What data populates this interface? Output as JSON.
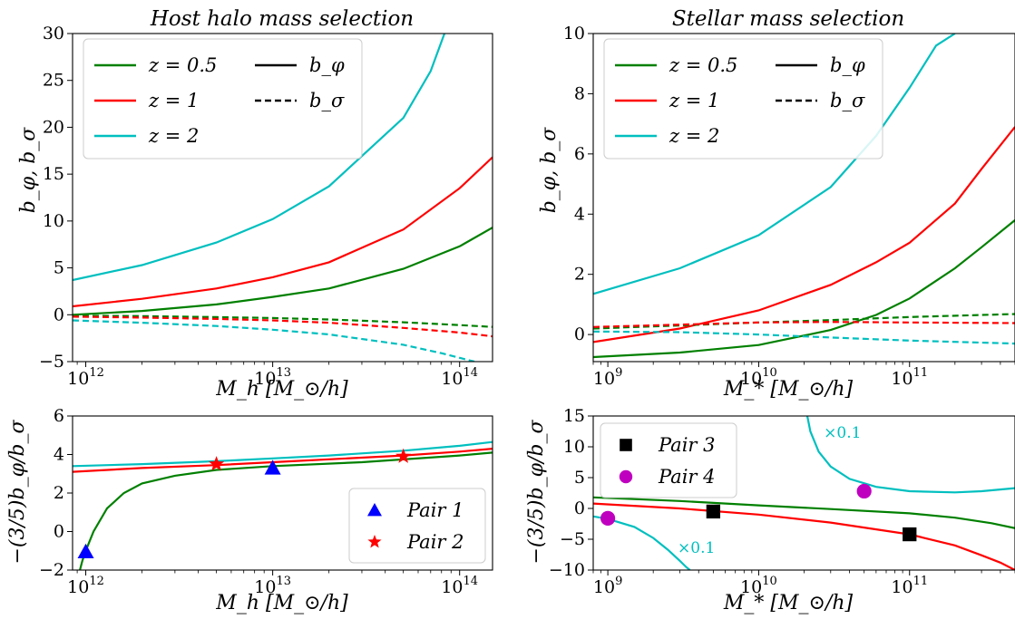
{
  "colors": {
    "z05": "#008000",
    "z1": "#ff0000",
    "z2": "#00bfbf",
    "pair1": "#0000ff",
    "pair2": "#ff0000",
    "pair3": "#000000",
    "pair4": "#bf00bf"
  },
  "chart_data": [
    {
      "id": "top-left",
      "type": "line",
      "title": "Host halo mass selection",
      "xlabel": "M_h [M_⊙/h]",
      "ylabel": "b_φ, b_σ",
      "xscale": "log",
      "xlim": [
        850000000000.0,
        150000000000000.0
      ],
      "ylim": [
        -5,
        30
      ],
      "xticks": [
        {
          "v": 1000000000000.0,
          "label": "10^12"
        },
        {
          "v": 10000000000000.0,
          "label": "10^13"
        },
        {
          "v": 100000000000000.0,
          "label": "10^14"
        }
      ],
      "yticks": [
        {
          "v": -5,
          "label": "−5"
        },
        {
          "v": 0,
          "label": "0"
        },
        {
          "v": 5,
          "label": "5"
        },
        {
          "v": 10,
          "label": "10"
        },
        {
          "v": 15,
          "label": "15"
        },
        {
          "v": 20,
          "label": "20"
        },
        {
          "v": 25,
          "label": "25"
        },
        {
          "v": 30,
          "label": "30"
        }
      ],
      "legend": {
        "placement": "top-left",
        "entries": [
          {
            "label": "z = 0.5",
            "color": "#008000",
            "dash": "solid"
          },
          {
            "label": "z = 1",
            "color": "#ff0000",
            "dash": "solid"
          },
          {
            "label": "z = 2",
            "color": "#00bfbf",
            "dash": "solid"
          },
          {
            "label": "b_φ",
            "color": "#000000",
            "dash": "solid"
          },
          {
            "label": "b_σ",
            "color": "#000000",
            "dash": "dashed"
          }
        ]
      },
      "series": [
        {
          "color": "#008000",
          "dash": "solid",
          "x": [
            850000000000.0,
            2000000000000.0,
            5000000000000.0,
            10000000000000.0,
            20000000000000.0,
            50000000000000.0,
            100000000000000.0,
            150000000000000.0
          ],
          "y": [
            0.0,
            0.4,
            1.1,
            1.9,
            2.8,
            4.9,
            7.3,
            9.3
          ]
        },
        {
          "color": "#ff0000",
          "dash": "solid",
          "x": [
            850000000000.0,
            2000000000000.0,
            5000000000000.0,
            10000000000000.0,
            20000000000000.0,
            50000000000000.0,
            100000000000000.0,
            150000000000000.0
          ],
          "y": [
            0.9,
            1.7,
            2.8,
            4.0,
            5.6,
            9.1,
            13.5,
            16.8
          ]
        },
        {
          "color": "#00bfbf",
          "dash": "solid",
          "x": [
            850000000000.0,
            2000000000000.0,
            5000000000000.0,
            10000000000000.0,
            20000000000000.0,
            50000000000000.0,
            70000000000000.0,
            83000000000000.0
          ],
          "y": [
            3.7,
            5.3,
            7.7,
            10.2,
            13.7,
            21.0,
            26.0,
            30.0
          ]
        },
        {
          "color": "#008000",
          "dash": "dashed",
          "x": [
            850000000000.0,
            2000000000000.0,
            5000000000000.0,
            10000000000000.0,
            20000000000000.0,
            50000000000000.0,
            100000000000000.0,
            150000000000000.0
          ],
          "y": [
            -0.1,
            -0.15,
            -0.25,
            -0.35,
            -0.5,
            -0.8,
            -1.1,
            -1.3
          ]
        },
        {
          "color": "#ff0000",
          "dash": "dashed",
          "x": [
            850000000000.0,
            2000000000000.0,
            5000000000000.0,
            10000000000000.0,
            20000000000000.0,
            50000000000000.0,
            100000000000000.0,
            150000000000000.0
          ],
          "y": [
            -0.2,
            -0.3,
            -0.45,
            -0.6,
            -0.85,
            -1.4,
            -1.9,
            -2.3
          ]
        },
        {
          "color": "#00bfbf",
          "dash": "dashed",
          "x": [
            850000000000.0,
            2000000000000.0,
            5000000000000.0,
            10000000000000.0,
            20000000000000.0,
            50000000000000.0,
            80000000000000.0,
            120000000000000.0
          ],
          "y": [
            -0.6,
            -0.85,
            -1.2,
            -1.6,
            -2.1,
            -3.2,
            -4.1,
            -5.0
          ]
        }
      ]
    },
    {
      "id": "top-right",
      "type": "line",
      "title": "Stellar mass selection",
      "xlabel": "M_* [M_⊙/h]",
      "ylabel": "b_φ, b_σ",
      "xscale": "log",
      "xlim": [
        800000000.0,
        500000000000.0
      ],
      "ylim": [
        -0.9,
        10
      ],
      "xticks": [
        {
          "v": 1000000000.0,
          "label": "10^9"
        },
        {
          "v": 10000000000.0,
          "label": "10^10"
        },
        {
          "v": 100000000000.0,
          "label": "10^11"
        }
      ],
      "yticks": [
        {
          "v": 0,
          "label": "0"
        },
        {
          "v": 2,
          "label": "2"
        },
        {
          "v": 4,
          "label": "4"
        },
        {
          "v": 6,
          "label": "6"
        },
        {
          "v": 8,
          "label": "8"
        },
        {
          "v": 10,
          "label": "10"
        }
      ],
      "legend": {
        "placement": "top-left",
        "entries": [
          {
            "label": "z = 0.5",
            "color": "#008000",
            "dash": "solid"
          },
          {
            "label": "z = 1",
            "color": "#ff0000",
            "dash": "solid"
          },
          {
            "label": "z = 2",
            "color": "#00bfbf",
            "dash": "solid"
          },
          {
            "label": "b_φ",
            "color": "#000000",
            "dash": "solid"
          },
          {
            "label": "b_σ",
            "color": "#000000",
            "dash": "dashed"
          }
        ]
      },
      "series": [
        {
          "color": "#008000",
          "dash": "solid",
          "x": [
            800000000.0,
            3000000000.0,
            10000000000.0,
            30000000000.0,
            60000000000.0,
            100000000000.0,
            200000000000.0,
            300000000000.0,
            500000000000.0
          ],
          "y": [
            -0.75,
            -0.6,
            -0.35,
            0.15,
            0.65,
            1.2,
            2.2,
            2.9,
            3.8
          ]
        },
        {
          "color": "#ff0000",
          "dash": "solid",
          "x": [
            800000000.0,
            3000000000.0,
            10000000000.0,
            30000000000.0,
            60000000000.0,
            100000000000.0,
            200000000000.0,
            300000000000.0,
            500000000000.0
          ],
          "y": [
            -0.25,
            0.2,
            0.8,
            1.65,
            2.4,
            3.05,
            4.35,
            5.5,
            6.9
          ]
        },
        {
          "color": "#00bfbf",
          "dash": "solid",
          "x": [
            800000000.0,
            3000000000.0,
            10000000000.0,
            30000000000.0,
            60000000000.0,
            100000000000.0,
            150000000000.0,
            200000000000.0
          ],
          "y": [
            1.35,
            2.2,
            3.3,
            4.9,
            6.6,
            8.2,
            9.6,
            10.0
          ]
        },
        {
          "color": "#008000",
          "dash": "dashed",
          "x": [
            800000000.0,
            3000000000.0,
            10000000000.0,
            30000000000.0,
            100000000000.0,
            500000000000.0
          ],
          "y": [
            0.2,
            0.3,
            0.4,
            0.48,
            0.58,
            0.68
          ]
        },
        {
          "color": "#ff0000",
          "dash": "dashed",
          "x": [
            800000000.0,
            3000000000.0,
            10000000000.0,
            30000000000.0,
            100000000000.0,
            500000000000.0
          ],
          "y": [
            0.25,
            0.33,
            0.4,
            0.42,
            0.4,
            0.38
          ]
        },
        {
          "color": "#00bfbf",
          "dash": "dashed",
          "x": [
            800000000.0,
            3000000000.0,
            10000000000.0,
            30000000000.0,
            100000000000.0,
            500000000000.0
          ],
          "y": [
            0.1,
            0.08,
            0.0,
            -0.1,
            -0.2,
            -0.3
          ]
        }
      ]
    },
    {
      "id": "bottom-left",
      "type": "line",
      "xlabel": "M_h [M_⊙/h]",
      "ylabel": "−(3/5)b_φ/b_σ",
      "xscale": "log",
      "xlim": [
        850000000000.0,
        150000000000000.0
      ],
      "ylim": [
        -2,
        6
      ],
      "xticks": [
        {
          "v": 1000000000000.0,
          "label": "10^12"
        },
        {
          "v": 10000000000000.0,
          "label": "10^13"
        },
        {
          "v": 100000000000000.0,
          "label": "10^14"
        }
      ],
      "yticks": [
        {
          "v": -2,
          "label": "−2"
        },
        {
          "v": 0,
          "label": "0"
        },
        {
          "v": 2,
          "label": "2"
        },
        {
          "v": 4,
          "label": "4"
        },
        {
          "v": 6,
          "label": "6"
        }
      ],
      "legend": {
        "placement": "lower-right",
        "entries": [
          {
            "label": "Pair 1",
            "color": "#0000ff",
            "marker": "triangle"
          },
          {
            "label": "Pair 2",
            "color": "#ff0000",
            "marker": "star"
          }
        ]
      },
      "series": [
        {
          "color": "#008000",
          "dash": "solid",
          "x": [
            930000000000.0,
            960000000000.0,
            1000000000000.0,
            1100000000000.0,
            1300000000000.0,
            1600000000000.0,
            2000000000000.0,
            3000000000000.0,
            5000000000000.0,
            10000000000000.0,
            30000000000000.0,
            100000000000000.0,
            150000000000000.0
          ],
          "y": [
            -2.0,
            -1.5,
            -1.0,
            0.0,
            1.2,
            2.0,
            2.5,
            2.9,
            3.2,
            3.4,
            3.6,
            3.95,
            4.1
          ]
        },
        {
          "color": "#ff0000",
          "dash": "solid",
          "x": [
            850000000000.0,
            2000000000000.0,
            5000000000000.0,
            10000000000000.0,
            20000000000000.0,
            50000000000000.0,
            100000000000000.0,
            150000000000000.0
          ],
          "y": [
            3.1,
            3.3,
            3.45,
            3.6,
            3.75,
            3.95,
            4.15,
            4.3
          ]
        },
        {
          "color": "#00bfbf",
          "dash": "solid",
          "x": [
            850000000000.0,
            2000000000000.0,
            5000000000000.0,
            10000000000000.0,
            20000000000000.0,
            50000000000000.0,
            100000000000000.0,
            150000000000000.0
          ],
          "y": [
            3.4,
            3.5,
            3.65,
            3.8,
            3.95,
            4.2,
            4.45,
            4.65
          ]
        }
      ],
      "points": [
        {
          "group": "Pair 1",
          "marker": "triangle",
          "color": "#0000ff",
          "x": 1000000000000.0,
          "y": -1.05
        },
        {
          "group": "Pair 1",
          "marker": "triangle",
          "color": "#0000ff",
          "x": 10000000000000.0,
          "y": 3.3
        },
        {
          "group": "Pair 2",
          "marker": "star",
          "color": "#ff0000",
          "x": 5000000000000.0,
          "y": 3.5
        },
        {
          "group": "Pair 2",
          "marker": "star",
          "color": "#ff0000",
          "x": 50000000000000.0,
          "y": 3.9
        }
      ]
    },
    {
      "id": "bottom-right",
      "type": "line",
      "xlabel": "M_* [M_⊙/h]",
      "ylabel": "−(3/5)b_φ/b_σ",
      "xscale": "log",
      "xlim": [
        800000000.0,
        500000000000.0
      ],
      "ylim": [
        -10,
        15
      ],
      "xticks": [
        {
          "v": 1000000000.0,
          "label": "10^9"
        },
        {
          "v": 10000000000.0,
          "label": "10^10"
        },
        {
          "v": 100000000000.0,
          "label": "10^11"
        }
      ],
      "yticks": [
        {
          "v": -10,
          "label": "−10"
        },
        {
          "v": -5,
          "label": "−5"
        },
        {
          "v": 0,
          "label": "0"
        },
        {
          "v": 5,
          "label": "5"
        },
        {
          "v": 10,
          "label": "10"
        },
        {
          "v": 15,
          "label": "15"
        }
      ],
      "legend": {
        "placement": "top-left",
        "entries": [
          {
            "label": "Pair 3",
            "color": "#000000",
            "marker": "square"
          },
          {
            "label": "Pair 4",
            "color": "#bf00bf",
            "marker": "circle"
          }
        ]
      },
      "annotations": [
        {
          "text": "×0.1",
          "x": 27000000000.0,
          "y": 11.5
        },
        {
          "text": "×0.1",
          "x": 2900000000.0,
          "y": -7.2
        }
      ],
      "series": [
        {
          "color": "#008000",
          "dash": "solid",
          "x": [
            800000000.0,
            3000000000.0,
            10000000000.0,
            30000000000.0,
            100000000000.0,
            200000000000.0,
            350000000000.0,
            500000000000.0
          ],
          "y": [
            1.8,
            1.2,
            0.5,
            -0.1,
            -0.8,
            -1.5,
            -2.4,
            -3.2
          ]
        },
        {
          "color": "#ff0000",
          "dash": "solid",
          "x": [
            800000000.0,
            3000000000.0,
            10000000000.0,
            30000000000.0,
            100000000000.0,
            200000000000.0,
            300000000000.0,
            400000000000.0,
            500000000000.0
          ],
          "y": [
            0.8,
            0.0,
            -1.0,
            -2.3,
            -4.2,
            -6.0,
            -7.6,
            -8.8,
            -10.0
          ]
        },
        {
          "color": "#00bfbf",
          "dash": "solid",
          "x": [
            21000000000.0,
            22000000000.0,
            25000000000.0,
            30000000000.0,
            40000000000.0,
            60000000000.0,
            100000000000.0,
            200000000000.0,
            300000000000.0,
            500000000000.0
          ],
          "y": [
            15.0,
            12.5,
            9.2,
            6.8,
            4.8,
            3.5,
            2.8,
            2.6,
            2.8,
            3.3
          ]
        },
        {
          "color": "#00bfbf",
          "dash": "solid",
          "x": [
            800000000.0,
            1000000000.0,
            1500000000.0,
            2000000000.0,
            2500000000.0,
            3000000000.0,
            3300000000.0,
            3500000000.0
          ],
          "y": [
            -1.3,
            -1.7,
            -3.0,
            -4.8,
            -6.7,
            -8.5,
            -9.5,
            -10.0
          ]
        }
      ],
      "points": [
        {
          "group": "Pair 3",
          "marker": "square",
          "color": "#000000",
          "x": 5000000000.0,
          "y": -0.5
        },
        {
          "group": "Pair 3",
          "marker": "square",
          "color": "#000000",
          "x": 100000000000.0,
          "y": -4.2
        },
        {
          "group": "Pair 4",
          "marker": "circle",
          "color": "#bf00bf",
          "x": 1000000000.0,
          "y": -1.6
        },
        {
          "group": "Pair 4",
          "marker": "circle",
          "color": "#bf00bf",
          "x": 50000000000.0,
          "y": 2.8
        }
      ]
    }
  ]
}
